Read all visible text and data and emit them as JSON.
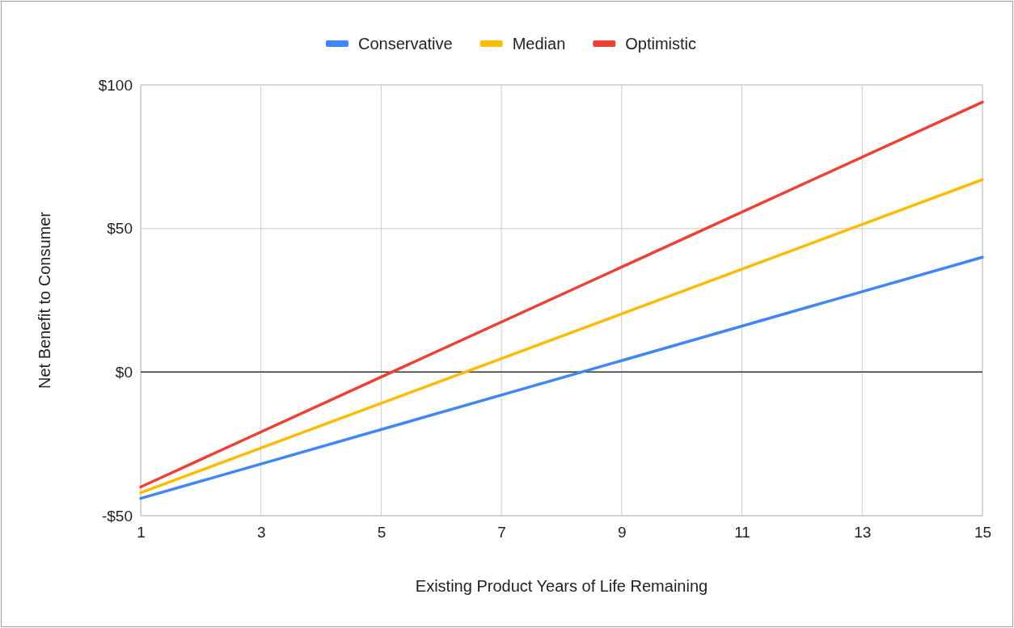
{
  "chart_data": {
    "type": "line",
    "xlabel": "Existing Product Years of Life Remaining",
    "ylabel": "Net Benefit to Consumer",
    "x": [
      1,
      15
    ],
    "series": [
      {
        "name": "Conservative",
        "color": "#4285f4",
        "values": [
          -44,
          40
        ]
      },
      {
        "name": "Median",
        "color": "#fbbc04",
        "values": [
          -42,
          67
        ]
      },
      {
        "name": "Optimistic",
        "color": "#ea4335",
        "values": [
          -40,
          94
        ]
      }
    ],
    "xlim": [
      1,
      15
    ],
    "xticks": [
      1,
      3,
      5,
      7,
      9,
      11,
      13,
      15
    ],
    "ylim": [
      -50,
      100
    ],
    "yticks": [
      {
        "value": -50,
        "label": "-$50"
      },
      {
        "value": 0,
        "label": "$0"
      },
      {
        "value": 50,
        "label": "$50"
      },
      {
        "value": 100,
        "label": "$100"
      }
    ],
    "ref_lines": [
      {
        "axis": "y",
        "value": 0,
        "color": "#333333"
      }
    ],
    "grid": true,
    "legend": "top",
    "line_style": "solid",
    "marker": "none"
  }
}
